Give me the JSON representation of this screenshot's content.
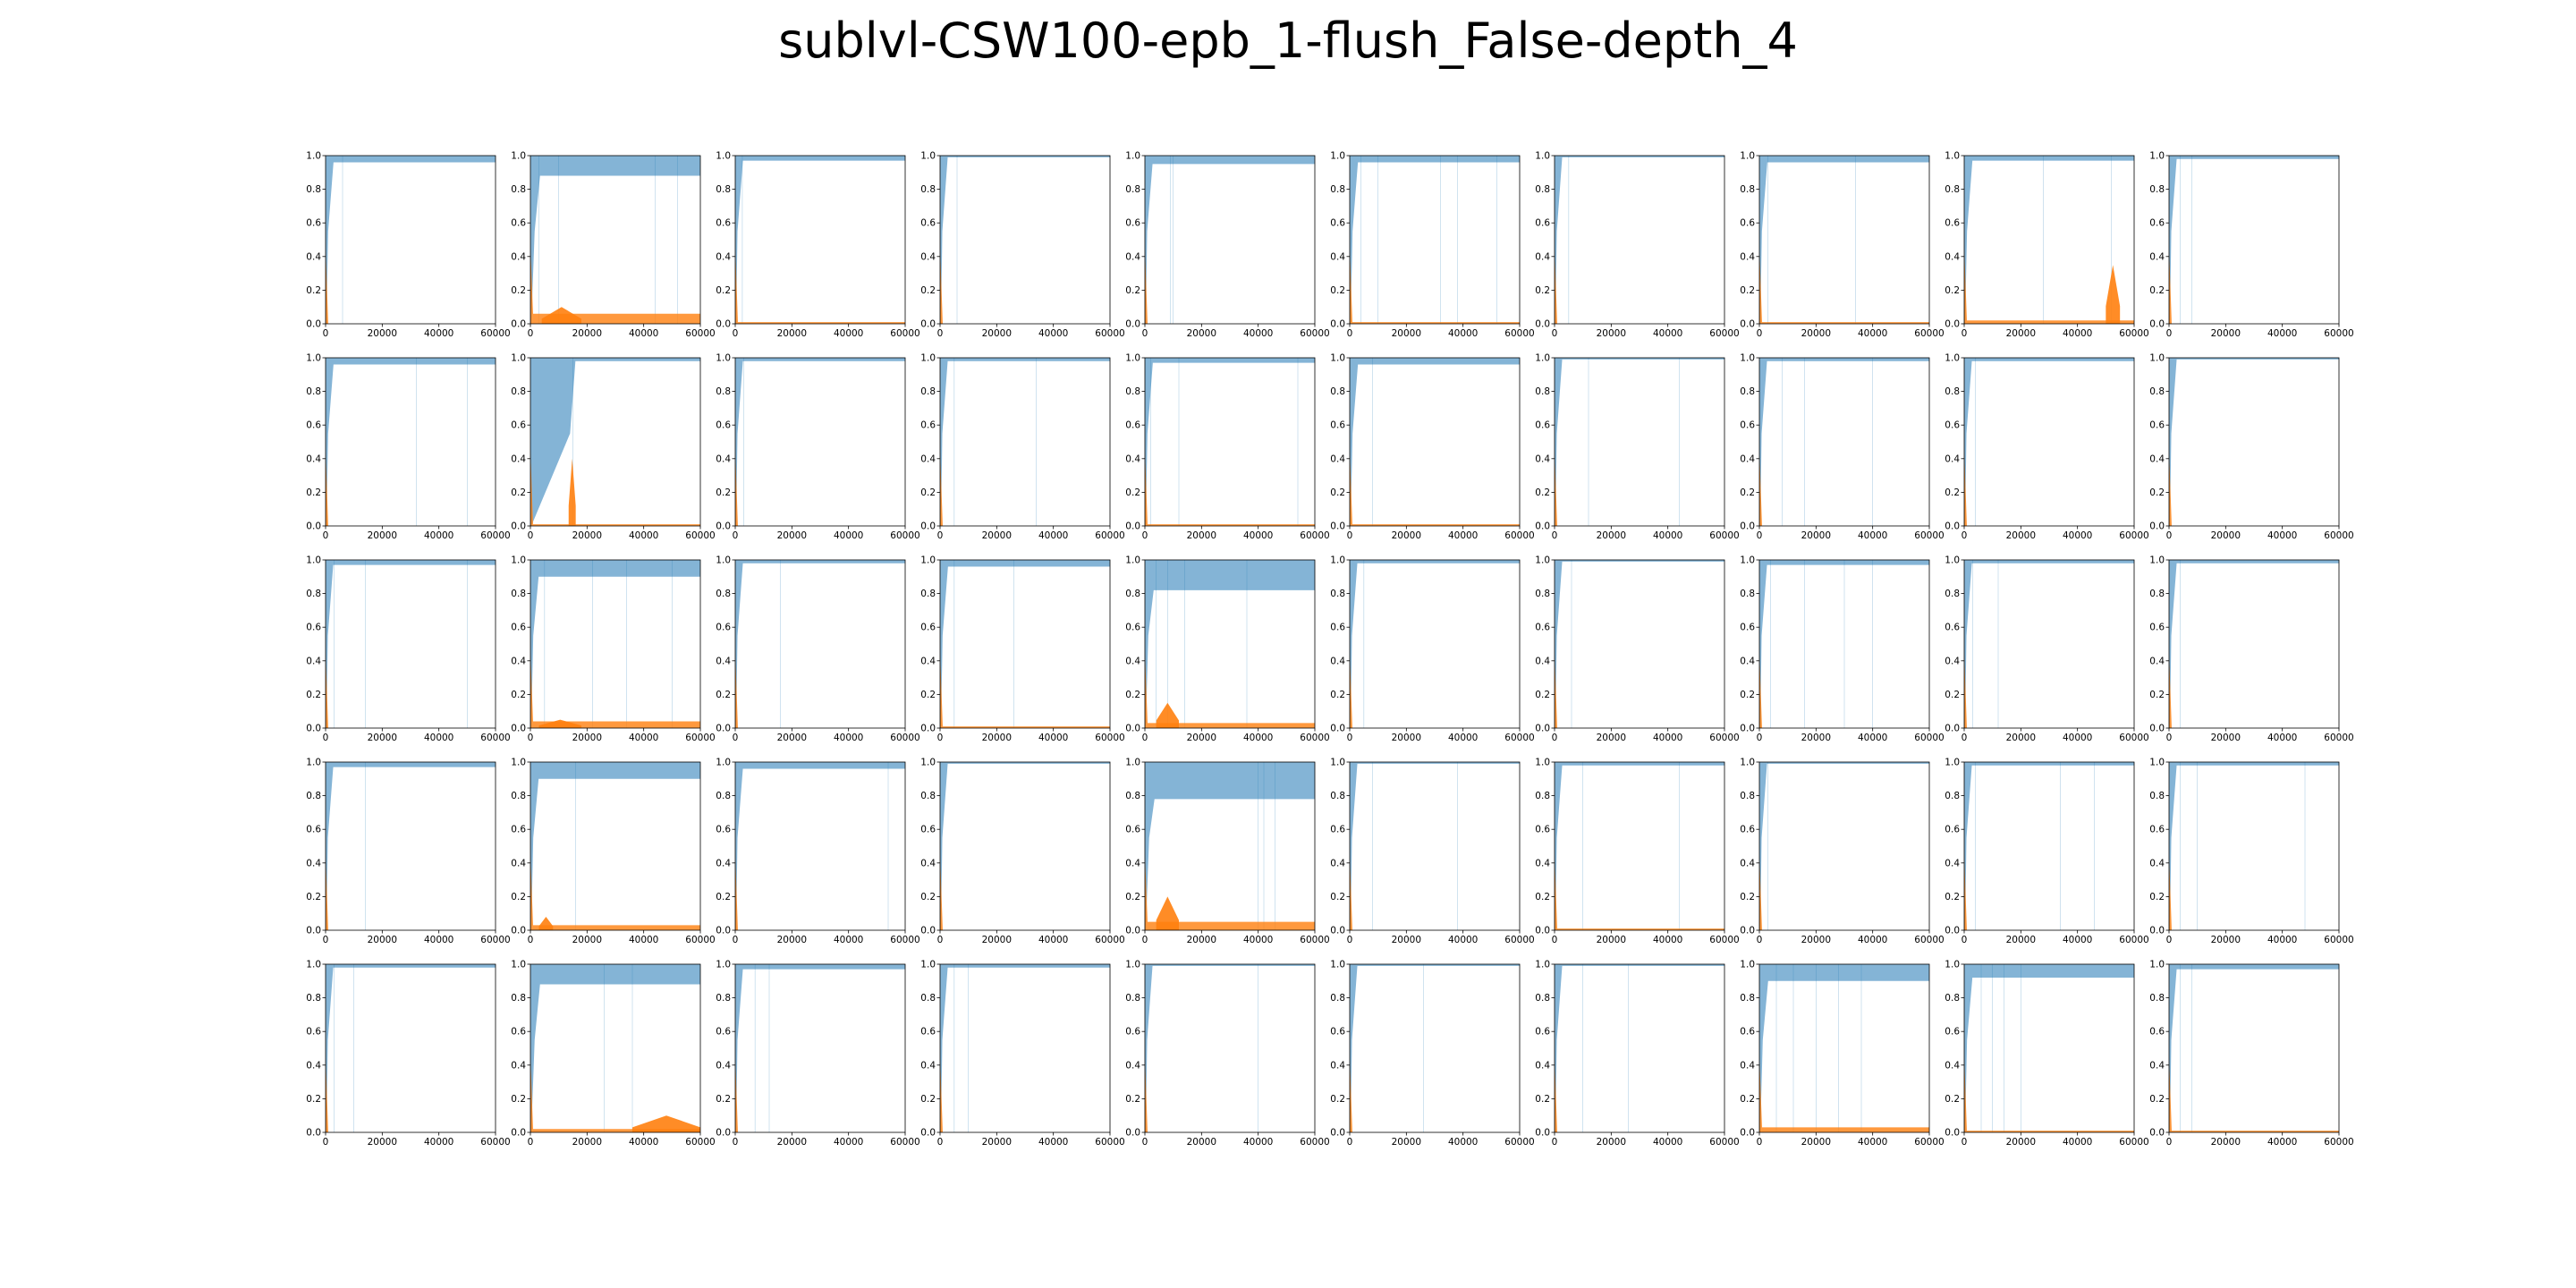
{
  "title": "sublvl-CSW100-epb_1-flush_False-depth_4",
  "chart_data": {
    "type": "area",
    "title": "sublvl-CSW100-epb_1-flush_False-depth_4",
    "layout_words": "small multiples, 5 rows by 10 columns, shared axes",
    "xlim": [
      0,
      60000
    ],
    "ylim": [
      0.0,
      1.0
    ],
    "xticks": [
      "0",
      "20000",
      "40000",
      "60000"
    ],
    "yticks": [
      "0.0",
      "0.2",
      "0.4",
      "0.6",
      "0.8",
      "1.0"
    ],
    "grid": false,
    "legend": "none",
    "series_colors": {
      "upper": "#1f77b4",
      "lower": "#ff7f0e"
    },
    "panels": [
      [
        {
          "drop_x": 900,
          "upper_floor": 0.96,
          "lower_level": 0.0,
          "spikes": [
            6000
          ]
        },
        {
          "drop_x": 1500,
          "upper_floor": 0.88,
          "lower_level": 0.06,
          "spikes": [
            3000,
            10000,
            44000,
            52000
          ],
          "bump": [
            4000,
            18000,
            0.1
          ]
        },
        {
          "drop_x": 800,
          "upper_floor": 0.97,
          "lower_level": 0.01,
          "spikes": [
            2500
          ]
        },
        {
          "drop_x": 800,
          "upper_floor": 0.99,
          "lower_level": 0.0,
          "spikes": [
            6000
          ]
        },
        {
          "drop_x": 800,
          "upper_floor": 0.95,
          "lower_level": 0.0,
          "spikes": [
            9000,
            10000
          ]
        },
        {
          "drop_x": 1000,
          "upper_floor": 0.96,
          "lower_level": 0.01,
          "spikes": [
            4000,
            10000,
            32000,
            38000,
            52000
          ]
        },
        {
          "drop_x": 800,
          "upper_floor": 0.99,
          "lower_level": 0.0,
          "spikes": [
            5000
          ]
        },
        {
          "drop_x": 900,
          "upper_floor": 0.96,
          "lower_level": 0.01,
          "spikes": [
            3000,
            34000
          ]
        },
        {
          "drop_x": 1000,
          "upper_floor": 0.97,
          "lower_level": 0.02,
          "spikes": [
            28000,
            52000
          ],
          "bump": [
            50000,
            55000,
            0.35
          ]
        },
        {
          "drop_x": 800,
          "upper_floor": 0.98,
          "lower_level": 0.0,
          "spikes": [
            4000,
            8000
          ]
        }
      ],
      [
        {
          "drop_x": 900,
          "upper_floor": 0.96,
          "lower_level": 0.0,
          "spikes": [
            32000,
            50000
          ]
        },
        {
          "drop_x": 14000,
          "upper_floor": 0.98,
          "lower_level": 0.01,
          "spikes": [
            15000
          ],
          "bump": [
            13500,
            16000,
            0.4
          ]
        },
        {
          "drop_x": 800,
          "upper_floor": 0.98,
          "lower_level": 0.0,
          "spikes": [
            3000
          ]
        },
        {
          "drop_x": 800,
          "upper_floor": 0.98,
          "lower_level": 0.0,
          "spikes": [
            5000,
            34000
          ]
        },
        {
          "drop_x": 900,
          "upper_floor": 0.97,
          "lower_level": 0.01,
          "spikes": [
            2000,
            12000,
            54000
          ]
        },
        {
          "drop_x": 1000,
          "upper_floor": 0.96,
          "lower_level": 0.01,
          "spikes": [
            8000
          ]
        },
        {
          "drop_x": 800,
          "upper_floor": 0.99,
          "lower_level": 0.0,
          "spikes": [
            12000,
            44000
          ]
        },
        {
          "drop_x": 800,
          "upper_floor": 0.98,
          "lower_level": 0.0,
          "spikes": [
            8000,
            16000,
            40000
          ]
        },
        {
          "drop_x": 800,
          "upper_floor": 0.98,
          "lower_level": 0.0,
          "spikes": [
            4000
          ]
        },
        {
          "drop_x": 800,
          "upper_floor": 0.99,
          "lower_level": 0.0,
          "spikes": []
        }
      ],
      [
        {
          "drop_x": 800,
          "upper_floor": 0.97,
          "lower_level": 0.0,
          "spikes": [
            3000,
            14000,
            50000
          ]
        },
        {
          "drop_x": 1000,
          "upper_floor": 0.9,
          "lower_level": 0.04,
          "spikes": [
            5000,
            22000,
            34000,
            50000
          ],
          "bump": [
            3000,
            18000,
            0.05
          ]
        },
        {
          "drop_x": 800,
          "upper_floor": 0.98,
          "lower_level": 0.0,
          "spikes": [
            16000
          ]
        },
        {
          "drop_x": 900,
          "upper_floor": 0.96,
          "lower_level": 0.01,
          "spikes": [
            5000,
            26000
          ]
        },
        {
          "drop_x": 1200,
          "upper_floor": 0.82,
          "lower_level": 0.03,
          "spikes": [
            4000,
            8000,
            14000,
            36000
          ],
          "bump": [
            4000,
            12000,
            0.15
          ]
        },
        {
          "drop_x": 800,
          "upper_floor": 0.98,
          "lower_level": 0.0,
          "spikes": [
            5000
          ]
        },
        {
          "drop_x": 800,
          "upper_floor": 0.99,
          "lower_level": 0.0,
          "spikes": [
            6000
          ]
        },
        {
          "drop_x": 800,
          "upper_floor": 0.97,
          "lower_level": 0.0,
          "spikes": [
            4000,
            16000,
            30000,
            40000
          ]
        },
        {
          "drop_x": 800,
          "upper_floor": 0.98,
          "lower_level": 0.0,
          "spikes": [
            3000,
            12000
          ]
        },
        {
          "drop_x": 800,
          "upper_floor": 0.98,
          "lower_level": 0.0,
          "spikes": [
            4000
          ]
        }
      ],
      [
        {
          "drop_x": 800,
          "upper_floor": 0.97,
          "lower_level": 0.0,
          "spikes": [
            14000
          ]
        },
        {
          "drop_x": 1000,
          "upper_floor": 0.9,
          "lower_level": 0.03,
          "spikes": [
            16000
          ],
          "bump": [
            3000,
            8000,
            0.08
          ]
        },
        {
          "drop_x": 800,
          "upper_floor": 0.96,
          "lower_level": 0.0,
          "spikes": [
            54000
          ]
        },
        {
          "drop_x": 800,
          "upper_floor": 0.99,
          "lower_level": 0.0,
          "spikes": []
        },
        {
          "drop_x": 1500,
          "upper_floor": 0.78,
          "lower_level": 0.05,
          "spikes": [
            40000,
            42000,
            46000
          ],
          "bump": [
            4000,
            12000,
            0.2
          ]
        },
        {
          "drop_x": 800,
          "upper_floor": 0.99,
          "lower_level": 0.0,
          "spikes": [
            8000,
            38000
          ]
        },
        {
          "drop_x": 800,
          "upper_floor": 0.98,
          "lower_level": 0.01,
          "spikes": [
            10000,
            44000
          ]
        },
        {
          "drop_x": 800,
          "upper_floor": 0.99,
          "lower_level": 0.0,
          "spikes": [
            3000
          ]
        },
        {
          "drop_x": 800,
          "upper_floor": 0.98,
          "lower_level": 0.0,
          "spikes": [
            4000,
            34000,
            46000
          ]
        },
        {
          "drop_x": 800,
          "upper_floor": 0.98,
          "lower_level": 0.0,
          "spikes": [
            4000,
            10000,
            48000
          ]
        }
      ],
      [
        {
          "drop_x": 800,
          "upper_floor": 0.98,
          "lower_level": 0.0,
          "spikes": [
            3000,
            10000
          ]
        },
        {
          "drop_x": 1500,
          "upper_floor": 0.88,
          "lower_level": 0.02,
          "spikes": [
            26000,
            36000
          ],
          "bump": [
            36000,
            60000,
            0.1
          ]
        },
        {
          "drop_x": 800,
          "upper_floor": 0.97,
          "lower_level": 0.0,
          "spikes": [
            7000,
            12000
          ]
        },
        {
          "drop_x": 800,
          "upper_floor": 0.98,
          "lower_level": 0.0,
          "spikes": [
            5000,
            10000
          ]
        },
        {
          "drop_x": 800,
          "upper_floor": 0.99,
          "lower_level": 0.0,
          "spikes": [
            40000
          ]
        },
        {
          "drop_x": 800,
          "upper_floor": 0.99,
          "lower_level": 0.0,
          "spikes": [
            26000
          ]
        },
        {
          "drop_x": 800,
          "upper_floor": 0.99,
          "lower_level": 0.0,
          "spikes": [
            10000,
            26000
          ]
        },
        {
          "drop_x": 1200,
          "upper_floor": 0.9,
          "lower_level": 0.03,
          "spikes": [
            6000,
            12000,
            20000,
            28000,
            36000
          ]
        },
        {
          "drop_x": 1000,
          "upper_floor": 0.92,
          "lower_level": 0.01,
          "spikes": [
            6000,
            10000,
            14000,
            20000
          ]
        },
        {
          "drop_x": 800,
          "upper_floor": 0.97,
          "lower_level": 0.01,
          "spikes": [
            4000,
            8000
          ]
        }
      ]
    ]
  }
}
